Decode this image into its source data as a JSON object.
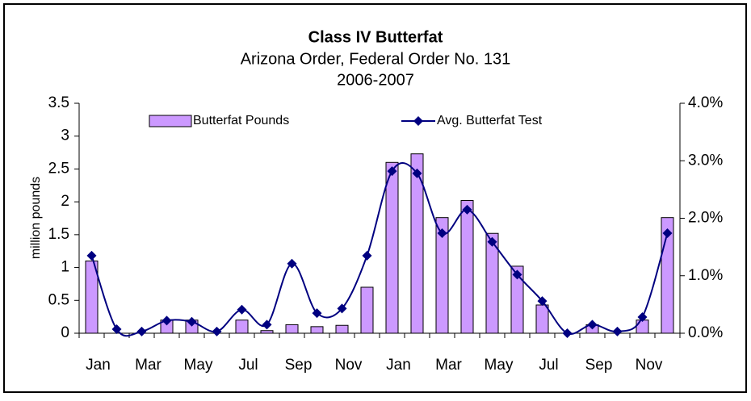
{
  "chart_data": {
    "type": "bar-line",
    "title": "Class IV Butterfat",
    "subtitle": "Arizona Order, Federal Order No. 131",
    "subtitle2": "2006-2007",
    "ylabel": "million pounds",
    "categories": [
      "Jan",
      null,
      "Mar",
      null,
      "May",
      null,
      "Jul",
      null,
      "Sep",
      null,
      "Nov",
      null,
      "Jan",
      null,
      "Mar",
      null,
      "May",
      null,
      "Jul",
      null,
      "Sep",
      null,
      "Nov",
      null
    ],
    "series": [
      {
        "name": "Butterfat Pounds",
        "type": "bar",
        "color": "#cc99ff",
        "values": [
          1.1,
          0,
          0,
          0.2,
          0.2,
          0,
          0.2,
          0.04,
          0.13,
          0.1,
          0.12,
          0.7,
          2.6,
          2.73,
          1.76,
          2.02,
          1.52,
          1.02,
          0.43,
          0,
          0.13,
          0,
          0.2,
          1.76
        ]
      },
      {
        "name": "Avg. Butterfat Test",
        "type": "line",
        "axis": "y2",
        "color": "#000080",
        "values": [
          1.35,
          0.07,
          0.03,
          0.22,
          0.2,
          0.03,
          0.41,
          0.15,
          1.21,
          0.35,
          0.43,
          1.35,
          2.82,
          2.78,
          1.74,
          2.15,
          1.59,
          1.02,
          0.56,
          0,
          0.15,
          0.03,
          0.28,
          1.74
        ]
      }
    ],
    "ylim": [
      0,
      3.5
    ],
    "yticks": [
      0,
      0.5,
      1,
      1.5,
      2,
      2.5,
      3,
      3.5
    ],
    "y2lim": [
      0,
      4
    ],
    "y2ticks": [
      {
        "value": 0,
        "label": "0.0%"
      },
      {
        "value": 1,
        "label": "1.0%"
      },
      {
        "value": 2,
        "label": "2.0%"
      },
      {
        "value": 3,
        "label": "3.0%"
      },
      {
        "value": 4,
        "label": "4.0%"
      }
    ],
    "legend": "top"
  }
}
